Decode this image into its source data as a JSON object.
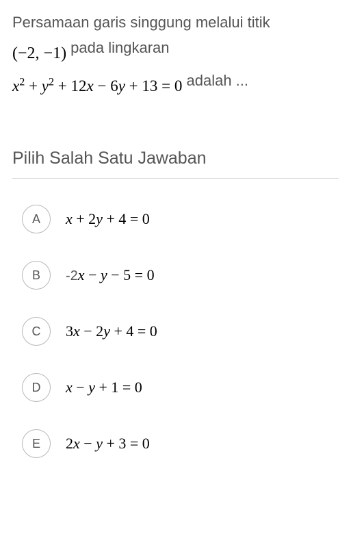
{
  "question": {
    "line1_text": "Persamaan garis singgung melalui titik",
    "point": "(−2, −1)",
    "line2_text": " pada lingkaran",
    "equation": "x² + y² + 12x − 6y + 13 = 0",
    "line3_text": " adalah ..."
  },
  "instruction": "Pilih Salah Satu Jawaban",
  "options": [
    {
      "letter": "A",
      "prefix": "",
      "formula": "x + 2y + 4 = 0"
    },
    {
      "letter": "B",
      "prefix": "-2",
      "formula": "x − y − 5 = 0"
    },
    {
      "letter": "C",
      "prefix": "",
      "formula": "3x − 2y + 4 = 0"
    },
    {
      "letter": "D",
      "prefix": "",
      "formula": "x − y + 1 = 0"
    },
    {
      "letter": "E",
      "prefix": "",
      "formula": "2x − y + 3 = 0"
    }
  ],
  "colors": {
    "text_body": "#555555",
    "text_math": "#000000",
    "border_option": "#b8b8b8",
    "divider": "#d8d8d8",
    "background": "#ffffff"
  },
  "fonts": {
    "body_family": "Arial",
    "body_size_pt": 16,
    "math_family": "Times New Roman",
    "math_size_pt": 17,
    "instruction_size_pt": 19
  }
}
